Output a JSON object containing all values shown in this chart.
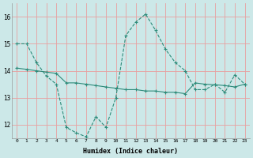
{
  "xlabel": "Humidex (Indice chaleur)",
  "x": [
    0,
    1,
    2,
    3,
    4,
    5,
    6,
    7,
    8,
    9,
    10,
    11,
    12,
    13,
    14,
    15,
    16,
    17,
    18,
    19,
    20,
    21,
    22,
    23
  ],
  "line1": [
    15.0,
    15.0,
    14.3,
    13.8,
    13.5,
    11.9,
    11.7,
    11.55,
    12.3,
    11.9,
    13.0,
    15.3,
    15.8,
    16.1,
    15.5,
    14.8,
    14.3,
    14.0,
    13.3,
    13.3,
    13.5,
    13.2,
    13.85,
    13.5
  ],
  "line2": [
    14.1,
    14.05,
    14.0,
    13.95,
    13.9,
    13.55,
    13.55,
    13.5,
    13.45,
    13.4,
    13.35,
    13.3,
    13.3,
    13.25,
    13.25,
    13.2,
    13.2,
    13.15,
    13.55,
    13.5,
    13.48,
    13.45,
    13.4,
    13.5
  ],
  "line_color": "#2e8b7a",
  "bg_color": "#cce8e8",
  "grid_color": "#e8a0a0",
  "ylim": [
    11.5,
    16.5
  ],
  "yticks": [
    12,
    13,
    14,
    15,
    16
  ],
  "xlim": [
    -0.5,
    23.5
  ],
  "xtick_labels": [
    "0",
    "1",
    "2",
    "3",
    "4",
    "5",
    "6",
    "7",
    "8",
    "9",
    "10",
    "11",
    "12",
    "13",
    "14",
    "15",
    "16",
    "17",
    "18",
    "19",
    "20",
    "21",
    "22",
    "23"
  ]
}
